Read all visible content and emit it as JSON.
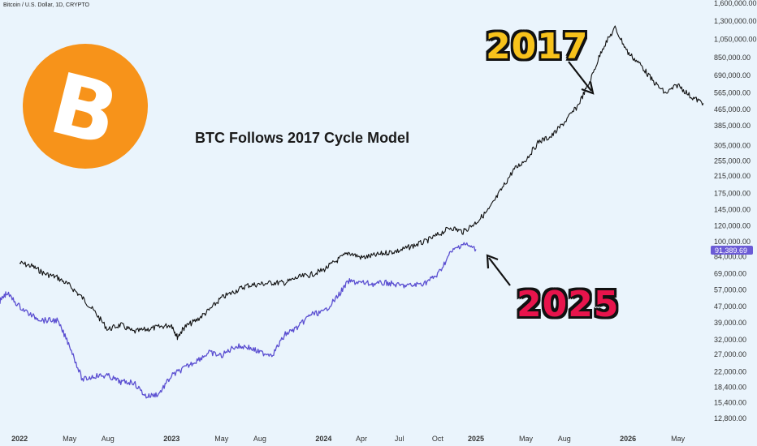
{
  "header": {
    "symbol_line": "Bitcoin / U.S. Dollar, 1D, CRYPTO"
  },
  "logo": {
    "name": "bitcoin-logo",
    "color": "#f7931a",
    "glyph": "B"
  },
  "colors": {
    "series_2017": "#111111",
    "series_2025": "#5b4fd1",
    "price_tag": "#6b5bd6",
    "background": "#eaf4fc"
  },
  "annotations": {
    "label_2017": "2017",
    "label_2025": "2025"
  },
  "last_price": "91,389.69",
  "chart_data": {
    "type": "line",
    "title": "BTC Follows 2017 Cycle Model",
    "y_scale": "log",
    "ylim": [
      11000,
      1600000
    ],
    "y_ticks": [
      12800,
      15400,
      18400,
      22000,
      27000,
      32000,
      39000,
      47000,
      57000,
      69000,
      84000,
      100000,
      120000,
      145000,
      175000,
      215000,
      255000,
      305000,
      385000,
      465000,
      565000,
      690000,
      850000,
      1050000,
      1300000,
      1600000
    ],
    "y_tick_labels": [
      "12,800.00",
      "15,400.00",
      "18,400.00",
      "22,000.00",
      "27,000.00",
      "32,000.00",
      "39,000.00",
      "47,000.00",
      "57,000.00",
      "69,000.00",
      "84,000.00",
      "100,000.00",
      "120,000.00",
      "145,000.00",
      "175,000.00",
      "215,000.00",
      "255,000.00",
      "305,000.00",
      "385,000.00",
      "465,000.00",
      "565,000.00",
      "690,000.00",
      "850,000.00",
      "1,050,000.00",
      "1,300,000.00",
      "1,600,000.00"
    ],
    "xlim": [
      "2021-11-15",
      "2026-07-05"
    ],
    "x_ticks": [
      {
        "date": "2022-01-01",
        "label": "2022",
        "year": true
      },
      {
        "date": "2022-05-01",
        "label": "May",
        "year": false
      },
      {
        "date": "2022-08-01",
        "label": "Aug",
        "year": false
      },
      {
        "date": "2023-01-01",
        "label": "2023",
        "year": true
      },
      {
        "date": "2023-05-01",
        "label": "May",
        "year": false
      },
      {
        "date": "2023-08-01",
        "label": "Aug",
        "year": false
      },
      {
        "date": "2024-01-01",
        "label": "2024",
        "year": true
      },
      {
        "date": "2024-04-01",
        "label": "Apr",
        "year": false
      },
      {
        "date": "2024-07-01",
        "label": "Jul",
        "year": false
      },
      {
        "date": "2024-10-01",
        "label": "Oct",
        "year": false
      },
      {
        "date": "2025-01-01",
        "label": "2025",
        "year": true
      },
      {
        "date": "2025-05-01",
        "label": "May",
        "year": false
      },
      {
        "date": "2025-08-01",
        "label": "Aug",
        "year": false
      },
      {
        "date": "2026-01-01",
        "label": "2026",
        "year": true
      },
      {
        "date": "2026-05-01",
        "label": "May",
        "year": false
      }
    ],
    "series": [
      {
        "name": "2017",
        "x": [
          "2022-01-01",
          "2022-02-01",
          "2022-03-01",
          "2022-04-01",
          "2022-05-01",
          "2022-06-01",
          "2022-07-01",
          "2022-08-01",
          "2022-09-01",
          "2022-10-01",
          "2022-11-01",
          "2022-12-01",
          "2023-01-01",
          "2023-01-15",
          "2023-02-01",
          "2023-03-01",
          "2023-04-01",
          "2023-05-01",
          "2023-06-01",
          "2023-07-01",
          "2023-08-01",
          "2023-09-01",
          "2023-10-01",
          "2023-11-01",
          "2023-12-01",
          "2024-01-01",
          "2024-02-01",
          "2024-03-01",
          "2024-04-01",
          "2024-05-01",
          "2024-06-01",
          "2024-07-01",
          "2024-08-01",
          "2024-09-01",
          "2024-10-01",
          "2024-11-01",
          "2024-12-01",
          "2025-01-01",
          "2025-02-01",
          "2025-03-01",
          "2025-04-01",
          "2025-05-01",
          "2025-06-01",
          "2025-07-01",
          "2025-08-01",
          "2025-09-01",
          "2025-10-01",
          "2025-11-01",
          "2025-12-01",
          "2026-01-01",
          "2026-02-01",
          "2026-03-01",
          "2026-04-01",
          "2026-05-01",
          "2026-06-01",
          "2026-07-01"
        ],
        "y": [
          78000,
          75000,
          69000,
          66000,
          60000,
          52000,
          44000,
          36000,
          38000,
          35000,
          36000,
          37000,
          38000,
          33000,
          37000,
          40000,
          45000,
          52000,
          56000,
          60000,
          61000,
          62000,
          62000,
          66000,
          68000,
          72000,
          80000,
          88000,
          83000,
          85000,
          88000,
          90000,
          95000,
          100000,
          108000,
          118000,
          112000,
          125000,
          145000,
          180000,
          230000,
          260000,
          320000,
          340000,
          400000,
          480000,
          640000,
          950000,
          1200000,
          900000,
          780000,
          650000,
          560000,
          620000,
          540000,
          500000
        ]
      },
      {
        "name": "2025",
        "x": [
          "2021-11-15",
          "2021-12-01",
          "2022-01-01",
          "2022-02-01",
          "2022-03-01",
          "2022-04-01",
          "2022-05-01",
          "2022-06-01",
          "2022-07-01",
          "2022-08-01",
          "2022-09-01",
          "2022-10-01",
          "2022-11-01",
          "2022-12-01",
          "2023-01-01",
          "2023-02-01",
          "2023-03-01",
          "2023-04-01",
          "2023-05-01",
          "2023-06-01",
          "2023-07-01",
          "2023-08-01",
          "2023-09-01",
          "2023-10-01",
          "2023-11-01",
          "2023-12-01",
          "2024-01-01",
          "2024-02-01",
          "2024-03-01",
          "2024-04-01",
          "2024-05-01",
          "2024-06-01",
          "2024-07-01",
          "2024-08-01",
          "2024-09-01",
          "2024-10-01",
          "2024-11-01",
          "2024-12-01",
          "2025-01-01"
        ],
        "y": [
          50000,
          55000,
          47000,
          42000,
          40000,
          40000,
          30000,
          20000,
          21000,
          21000,
          19500,
          19500,
          16500,
          17000,
          21000,
          23000,
          25000,
          27500,
          26500,
          29500,
          29500,
          27500,
          27000,
          34000,
          37000,
          43000,
          44000,
          52000,
          63000,
          62000,
          61000,
          62000,
          60000,
          60000,
          62000,
          68000,
          88000,
          98000,
          91389.69
        ]
      }
    ]
  }
}
